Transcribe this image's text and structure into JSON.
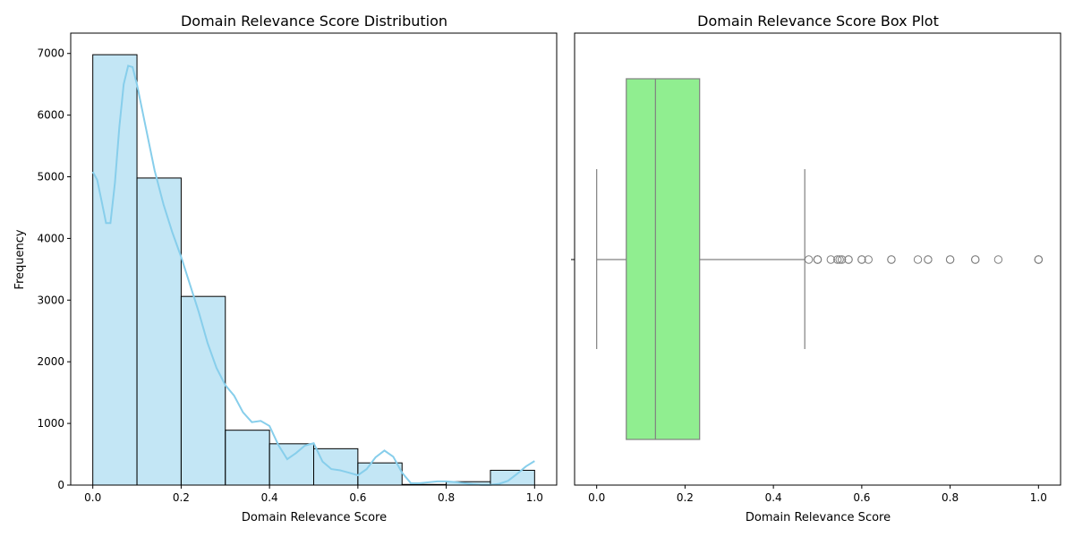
{
  "chart_data": [
    {
      "type": "bar",
      "title": "Domain Relevance Score Distribution",
      "xlabel": "Domain Relevance Score",
      "ylabel": "Frequency",
      "xlim": [
        -0.05,
        1.05
      ],
      "ylim": [
        0,
        7330
      ],
      "xticks": [
        0.0,
        0.2,
        0.4,
        0.6,
        0.8,
        1.0
      ],
      "xtick_labels": [
        "0.0",
        "0.2",
        "0.4",
        "0.6",
        "0.8",
        "1.0"
      ],
      "yticks": [
        0,
        1000,
        2000,
        3000,
        4000,
        5000,
        6000,
        7000
      ],
      "ytick_labels": [
        "0",
        "1000",
        "2000",
        "3000",
        "4000",
        "5000",
        "6000",
        "7000"
      ],
      "bins": [
        {
          "x0": 0.0,
          "x1": 0.1,
          "count": 6980
        },
        {
          "x0": 0.1,
          "x1": 0.2,
          "count": 4980
        },
        {
          "x0": 0.2,
          "x1": 0.3,
          "count": 3060
        },
        {
          "x0": 0.3,
          "x1": 0.4,
          "count": 890
        },
        {
          "x0": 0.4,
          "x1": 0.5,
          "count": 670
        },
        {
          "x0": 0.5,
          "x1": 0.6,
          "count": 590
        },
        {
          "x0": 0.6,
          "x1": 0.7,
          "count": 360
        },
        {
          "x0": 0.7,
          "x1": 0.8,
          "count": 10
        },
        {
          "x0": 0.8,
          "x1": 0.9,
          "count": 55
        },
        {
          "x0": 0.9,
          "x1": 1.0,
          "count": 240
        }
      ],
      "kde": {
        "x": [
          0.0,
          0.01,
          0.02,
          0.03,
          0.04,
          0.05,
          0.06,
          0.07,
          0.08,
          0.09,
          0.1,
          0.12,
          0.14,
          0.16,
          0.18,
          0.2,
          0.22,
          0.24,
          0.26,
          0.28,
          0.3,
          0.32,
          0.34,
          0.36,
          0.38,
          0.4,
          0.42,
          0.44,
          0.46,
          0.48,
          0.5,
          0.52,
          0.54,
          0.56,
          0.58,
          0.6,
          0.62,
          0.64,
          0.66,
          0.68,
          0.7,
          0.72,
          0.74,
          0.76,
          0.78,
          0.8,
          0.82,
          0.84,
          0.86,
          0.88,
          0.9,
          0.92,
          0.94,
          0.96,
          0.98,
          1.0
        ],
        "y": [
          5080,
          4950,
          4600,
          4250,
          4250,
          4900,
          5800,
          6500,
          6800,
          6780,
          6500,
          5800,
          5100,
          4550,
          4100,
          3700,
          3250,
          2800,
          2300,
          1900,
          1620,
          1450,
          1180,
          1020,
          1040,
          960,
          650,
          420,
          520,
          640,
          680,
          380,
          260,
          240,
          200,
          160,
          260,
          450,
          560,
          460,
          200,
          30,
          30,
          45,
          60,
          60,
          50,
          30,
          15,
          5,
          5,
          20,
          70,
          180,
          300,
          390
        ]
      },
      "colors": {
        "bar_fill": "#87ceeb",
        "bar_edge": "#000000",
        "kde_line": "#87ceeb"
      }
    },
    {
      "type": "box",
      "title": "Domain Relevance Score Box Plot",
      "xlabel": "Domain Relevance Score",
      "xlim": [
        -0.05,
        1.05
      ],
      "xticks": [
        0.0,
        0.2,
        0.4,
        0.6,
        0.8,
        1.0
      ],
      "xtick_labels": [
        "0.0",
        "0.2",
        "0.4",
        "0.6",
        "0.8",
        "1.0"
      ],
      "whisker_low": 0.0,
      "q1": 0.067,
      "median": 0.133,
      "q3": 0.233,
      "whisker_high": 0.471,
      "outliers": [
        0.48,
        0.5,
        0.5,
        0.5,
        0.53,
        0.545,
        0.55,
        0.555,
        0.57,
        0.57,
        0.6,
        0.6,
        0.615,
        0.667,
        0.667,
        0.727,
        0.75,
        0.75,
        0.8,
        0.8,
        0.857,
        0.857,
        0.909,
        1.0,
        1.0,
        1.0
      ],
      "colors": {
        "box_fill": "#90ee90",
        "line": "#808080"
      }
    }
  ]
}
